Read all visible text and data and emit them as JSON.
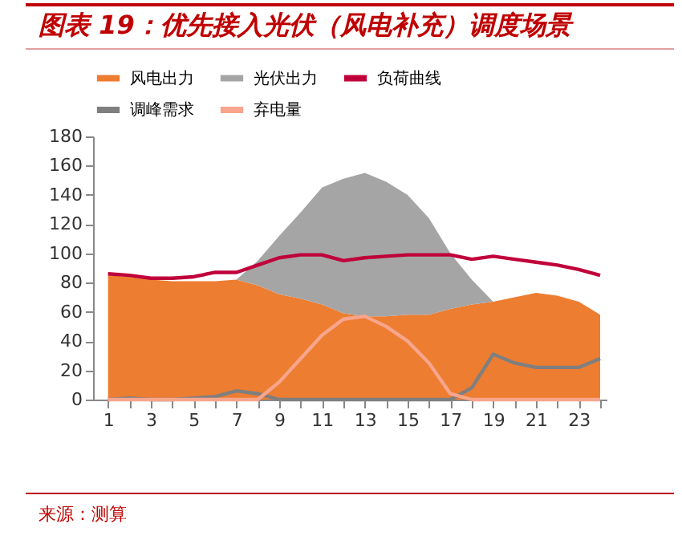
{
  "chart_data": {
    "type": "area",
    "title": "图表 19：优先接入光伏（风电补充）调度场景",
    "x": [
      1,
      2,
      3,
      4,
      5,
      6,
      7,
      8,
      9,
      10,
      11,
      12,
      13,
      14,
      15,
      16,
      17,
      18,
      19,
      20,
      21,
      22,
      23,
      24
    ],
    "stacked": true,
    "series": [
      {
        "name": "风电出力",
        "type": "area",
        "color": "#ed7d31",
        "values": [
          85,
          84,
          82,
          81,
          81,
          81,
          82,
          78,
          72,
          69,
          65,
          59,
          57,
          57,
          58,
          58,
          62,
          65,
          67,
          70,
          73,
          71,
          67,
          58
        ]
      },
      {
        "name": "光伏出力",
        "type": "area",
        "color": "#a5a5a5",
        "values": [
          0,
          0,
          0,
          0,
          0,
          0,
          0,
          17,
          40,
          59,
          80,
          92,
          98,
          92,
          82,
          66,
          38,
          17,
          0,
          0,
          0,
          0,
          0,
          0
        ]
      },
      {
        "name": "负荷曲线",
        "type": "line",
        "color": "#c0003a",
        "values": [
          86,
          85,
          83,
          83,
          84,
          87,
          87,
          92,
          97,
          99,
          99,
          95,
          97,
          98,
          99,
          99,
          99,
          96,
          98,
          96,
          94,
          92,
          89,
          85
        ]
      },
      {
        "name": "调峰需求",
        "type": "line",
        "color": "#7f7f7f",
        "values": [
          0,
          1,
          0,
          0,
          1,
          2,
          6,
          4,
          0,
          0,
          0,
          0,
          0,
          0,
          0,
          0,
          0,
          8,
          31,
          25,
          22,
          22,
          22,
          28
        ]
      },
      {
        "name": "弃电量",
        "type": "line",
        "color": "#f7a58c",
        "values": [
          0,
          0,
          0,
          0,
          0,
          0,
          0,
          0,
          12,
          28,
          44,
          55,
          57,
          50,
          40,
          25,
          4,
          0,
          0,
          0,
          0,
          0,
          0,
          0
        ]
      }
    ],
    "xlim": [
      0.3,
      24.3
    ],
    "xticks": [
      1,
      {
        "value": 2,
        "label": null
      },
      3,
      {
        "value": 4,
        "label": null
      },
      5,
      {
        "value": 6,
        "label": null
      },
      7,
      {
        "value": 8,
        "label": null
      },
      9,
      {
        "value": 10,
        "label": null
      },
      11,
      {
        "value": 12,
        "label": null
      },
      13,
      {
        "value": 14,
        "label": null
      },
      15,
      {
        "value": 16,
        "label": null
      },
      17,
      {
        "value": 18,
        "label": null
      },
      19,
      {
        "value": 20,
        "label": null
      },
      21,
      {
        "value": 22,
        "label": null
      },
      23,
      {
        "value": 24,
        "label": null
      }
    ],
    "ylim": [
      0,
      180
    ],
    "yticks": [
      0,
      20,
      40,
      60,
      80,
      100,
      120,
      140,
      160,
      180
    ],
    "grid": false,
    "legend": "top",
    "annotations": [
      "来源：测算"
    ]
  }
}
